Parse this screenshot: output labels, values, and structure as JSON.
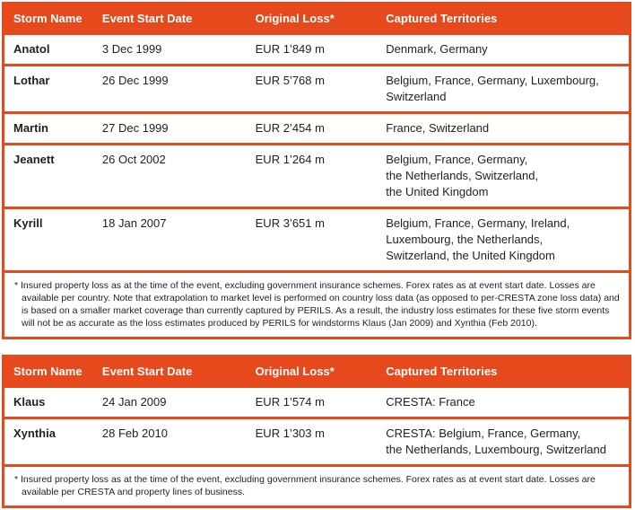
{
  "theme": {
    "accent": "#E5491C",
    "body_text": "#1F1F1F",
    "header_text": "#FFFFFF"
  },
  "table1": {
    "columns": {
      "storm": "Storm Name",
      "date": "Event Start Date",
      "loss": "Original Loss*",
      "territories": "Captured Territories"
    },
    "rows": [
      {
        "storm": "Anatol",
        "date": "3 Dec 1999",
        "loss": "EUR 1’849 m",
        "territories": "Denmark, Germany"
      },
      {
        "storm": "Lothar",
        "date": "26 Dec 1999",
        "loss": "EUR 5’768 m",
        "territories": "Belgium, France, Germany, Luxembourg,\nSwitzerland"
      },
      {
        "storm": "Martin",
        "date": "27 Dec 1999",
        "loss": "EUR 2’454 m",
        "territories": "France, Switzerland"
      },
      {
        "storm": "Jeanett",
        "date": "26 Oct 2002",
        "loss": "EUR 1’264 m",
        "territories": "Belgium, France, Germany,\nthe Netherlands, Switzerland,\nthe United Kingdom"
      },
      {
        "storm": "Kyrill",
        "date": "18 Jan 2007",
        "loss": "EUR 3’651 m",
        "territories": "Belgium, France, Germany, Ireland,\nLuxembourg, the Netherlands,\nSwitzerland, the United Kingdom"
      }
    ],
    "footnote": "* Insured property loss as at the time of the event, excluding government insurance schemes. Forex rates as at event start date. Losses are available per country. Note that extrapolation to market level is performed on country loss data (as opposed to per-CRESTA zone loss data) and is based on a smaller market coverage than currently captured by PERILS. As a result, the industry loss estimates for these five storm events will not be as accurate as the loss estimates produced by PERILS for windstorms Klaus (Jan 2009) and Xynthia (Feb 2010)."
  },
  "table2": {
    "columns": {
      "storm": "Storm Name",
      "date": "Event Start Date",
      "loss": "Original Loss*",
      "territories": "Captured Territories"
    },
    "rows": [
      {
        "storm": "Klaus",
        "date": "24 Jan 2009",
        "loss": "EUR 1’574 m",
        "territories": "CRESTA: France"
      },
      {
        "storm": "Xynthia",
        "date": "28 Feb 2010",
        "loss": "EUR 1’303 m",
        "territories": "CRESTA: Belgium, France, Germany,\nthe Netherlands, Luxembourg, Switzerland"
      }
    ],
    "footnote": "* Insured property loss as at the time of the event, excluding government insurance schemes. Forex rates as at event start date. Losses are available per CRESTA and property lines of business."
  }
}
